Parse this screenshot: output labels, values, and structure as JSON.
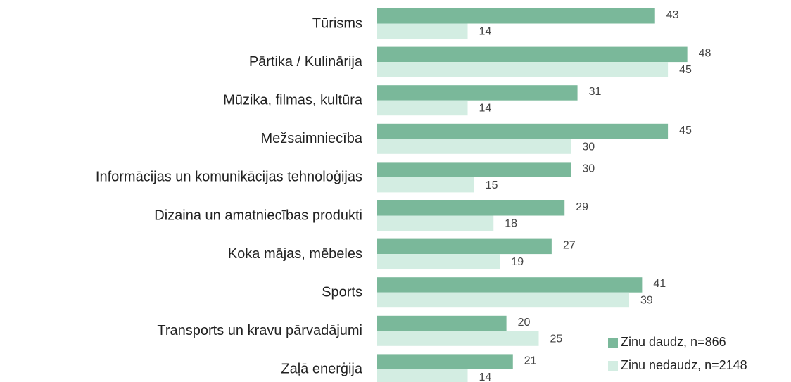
{
  "chart_data": {
    "type": "bar",
    "orientation": "horizontal",
    "categories": [
      "Tūrisms",
      "Pārtika / Kulinārija",
      "Mūzika, filmas, kultūra",
      "Mežsaimniecība",
      "Informācijas un komunikācijas tehnoloģijas",
      "Dizaina un amatniecības produkti",
      "Koka mājas, mēbeles",
      "Sports",
      "Transports un kravu pārvadājumi",
      "Zaļā enerģija"
    ],
    "series": [
      {
        "name": "Zinu daudz, n=866",
        "color": "#7ab89a",
        "values": [
          43,
          48,
          31,
          45,
          30,
          29,
          27,
          41,
          20,
          21
        ]
      },
      {
        "name": "Zinu nedaudz, n=2148",
        "color": "#d3ede2",
        "values": [
          14,
          45,
          14,
          30,
          15,
          18,
          19,
          39,
          25,
          14
        ]
      }
    ],
    "legend": "bottom-right"
  }
}
